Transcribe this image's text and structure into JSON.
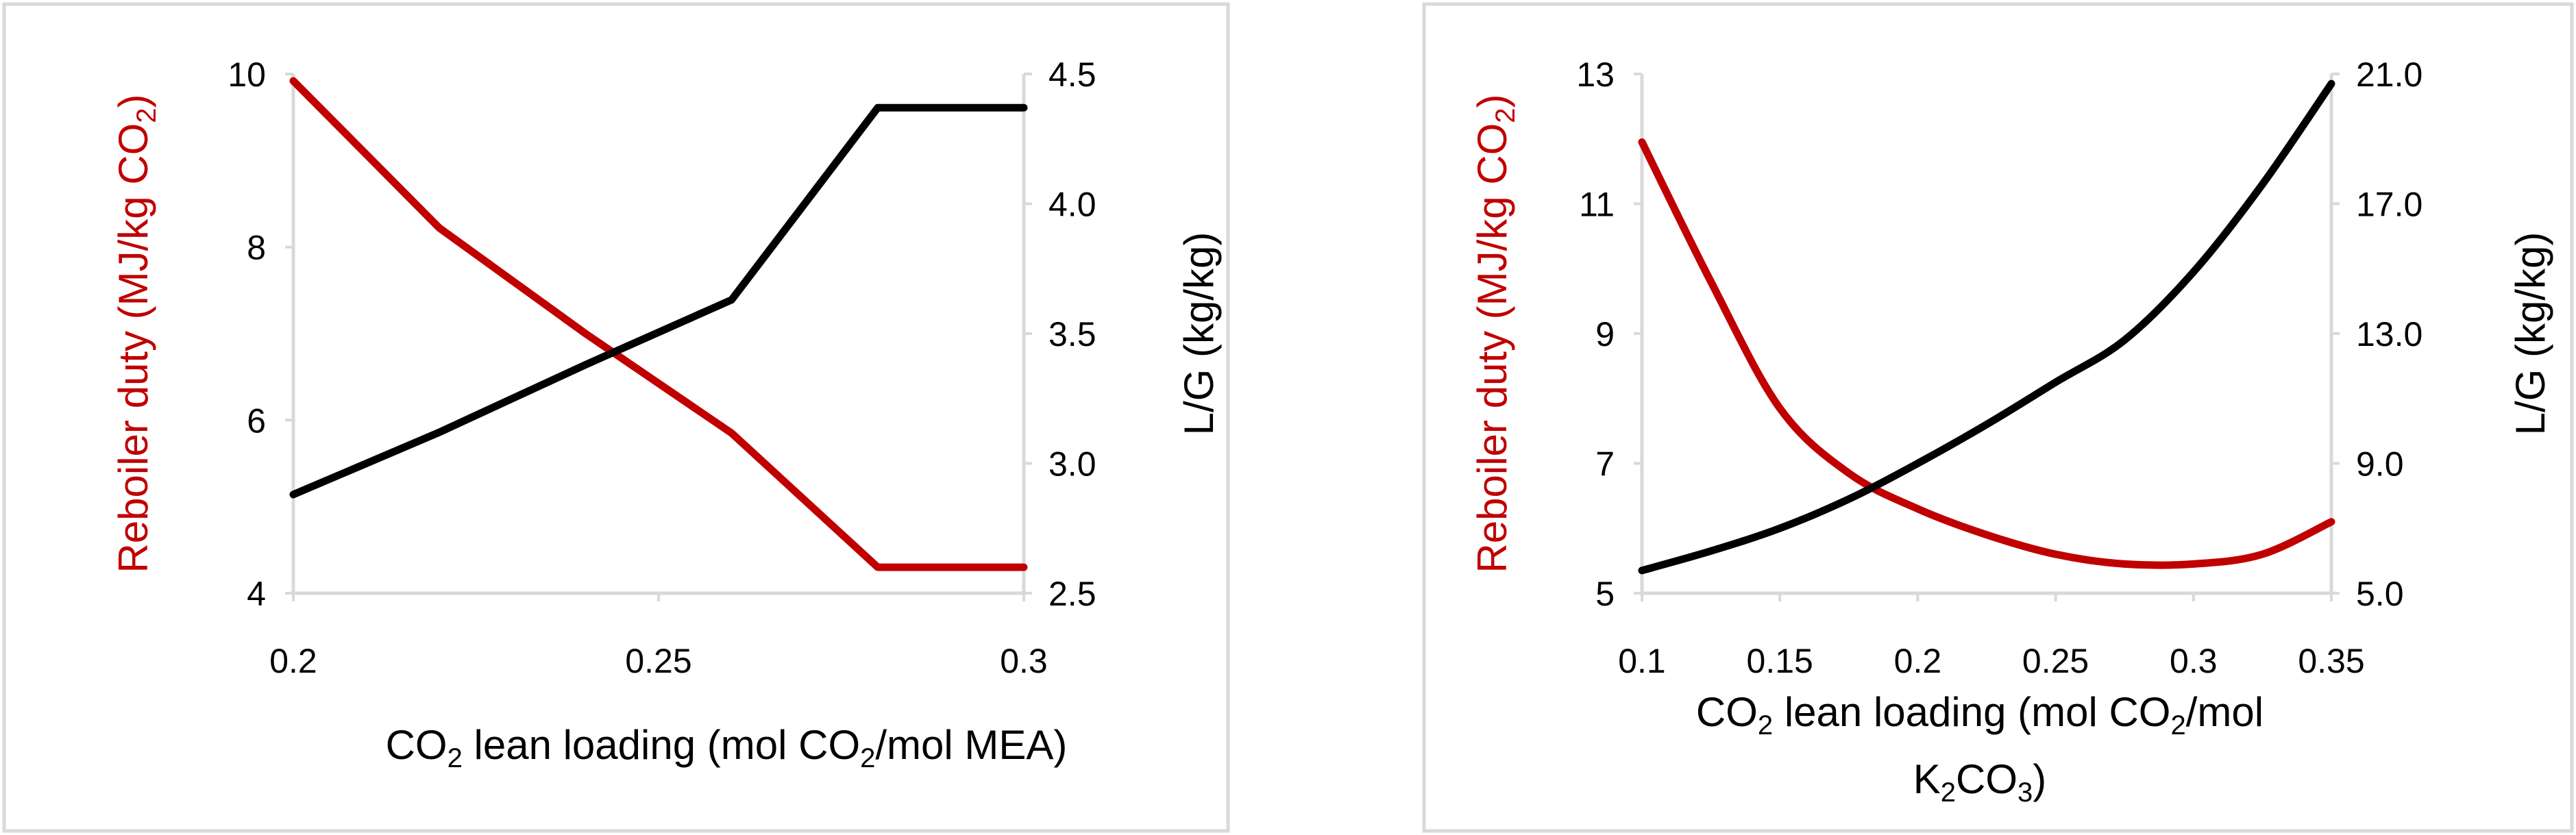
{
  "colors": {
    "reboiler": "#c00000",
    "lg": "#000000",
    "frame": "#d9d9d9",
    "axis": "#d9d9d9"
  },
  "chart_data": [
    {
      "type": "line",
      "panel": "left",
      "x": [
        0.2,
        0.22,
        0.24,
        0.26,
        0.28,
        0.3
      ],
      "xlim": [
        0.2,
        0.3
      ],
      "x_ticks": [
        "0.2",
        "0.25",
        "0.3"
      ],
      "ylim_left": [
        4,
        10
      ],
      "y_ticks_left": [
        "4",
        "6",
        "8",
        "10"
      ],
      "ylim_right": [
        2.5,
        4.5
      ],
      "y_ticks_right": [
        "2.5",
        "3.0",
        "3.5",
        "4.0",
        "4.5"
      ],
      "ylabel_left": "Reboiler duty (MJ/kg CO₂)",
      "ylabel_right": "L/G (kg/kg)",
      "xlabel": "CO₂ lean loading (mol CO₂/mol MEA)",
      "series": [
        {
          "name": "Reboiler duty",
          "axis": "left",
          "color": "#c00000",
          "values": [
            9.92,
            8.22,
            7.0,
            5.85,
            4.3,
            4.3
          ]
        },
        {
          "name": "L/G",
          "axis": "right",
          "color": "#000000",
          "values": [
            2.88,
            3.12,
            3.38,
            3.63,
            4.37,
            4.37
          ]
        }
      ]
    },
    {
      "type": "line",
      "panel": "right",
      "x": [
        0.1,
        0.125,
        0.15,
        0.175,
        0.2,
        0.225,
        0.25,
        0.275,
        0.3,
        0.325,
        0.35
      ],
      "xlim": [
        0.1,
        0.35
      ],
      "x_ticks": [
        "0.1",
        "0.15",
        "0.2",
        "0.25",
        "0.3",
        "0.35"
      ],
      "ylim_left": [
        5,
        13
      ],
      "y_ticks_left": [
        "5",
        "7",
        "9",
        "11",
        "13"
      ],
      "ylim_right": [
        5.0,
        21.0
      ],
      "y_ticks_right": [
        "5.0",
        "9.0",
        "13.0",
        "17.0",
        "21.0"
      ],
      "ylabel_left": "Reboiler duty (MJ/kg CO₂)",
      "ylabel_right": "L/G (kg/kg)",
      "xlabel_line1": "CO₂ lean loading (mol CO₂/mol",
      "xlabel_line2": "K₂CO₃)",
      "series": [
        {
          "name": "Reboiler duty",
          "axis": "left",
          "color": "#c00000",
          "values": [
            11.95,
            9.8,
            7.85,
            6.85,
            6.3,
            5.9,
            5.6,
            5.45,
            5.45,
            5.6,
            6.1
          ]
        },
        {
          "name": "L/G",
          "axis": "right",
          "color": "#000000",
          "values": [
            5.7,
            6.3,
            7.0,
            7.9,
            9.0,
            10.2,
            11.5,
            12.8,
            14.9,
            17.6,
            20.7
          ]
        }
      ]
    }
  ]
}
